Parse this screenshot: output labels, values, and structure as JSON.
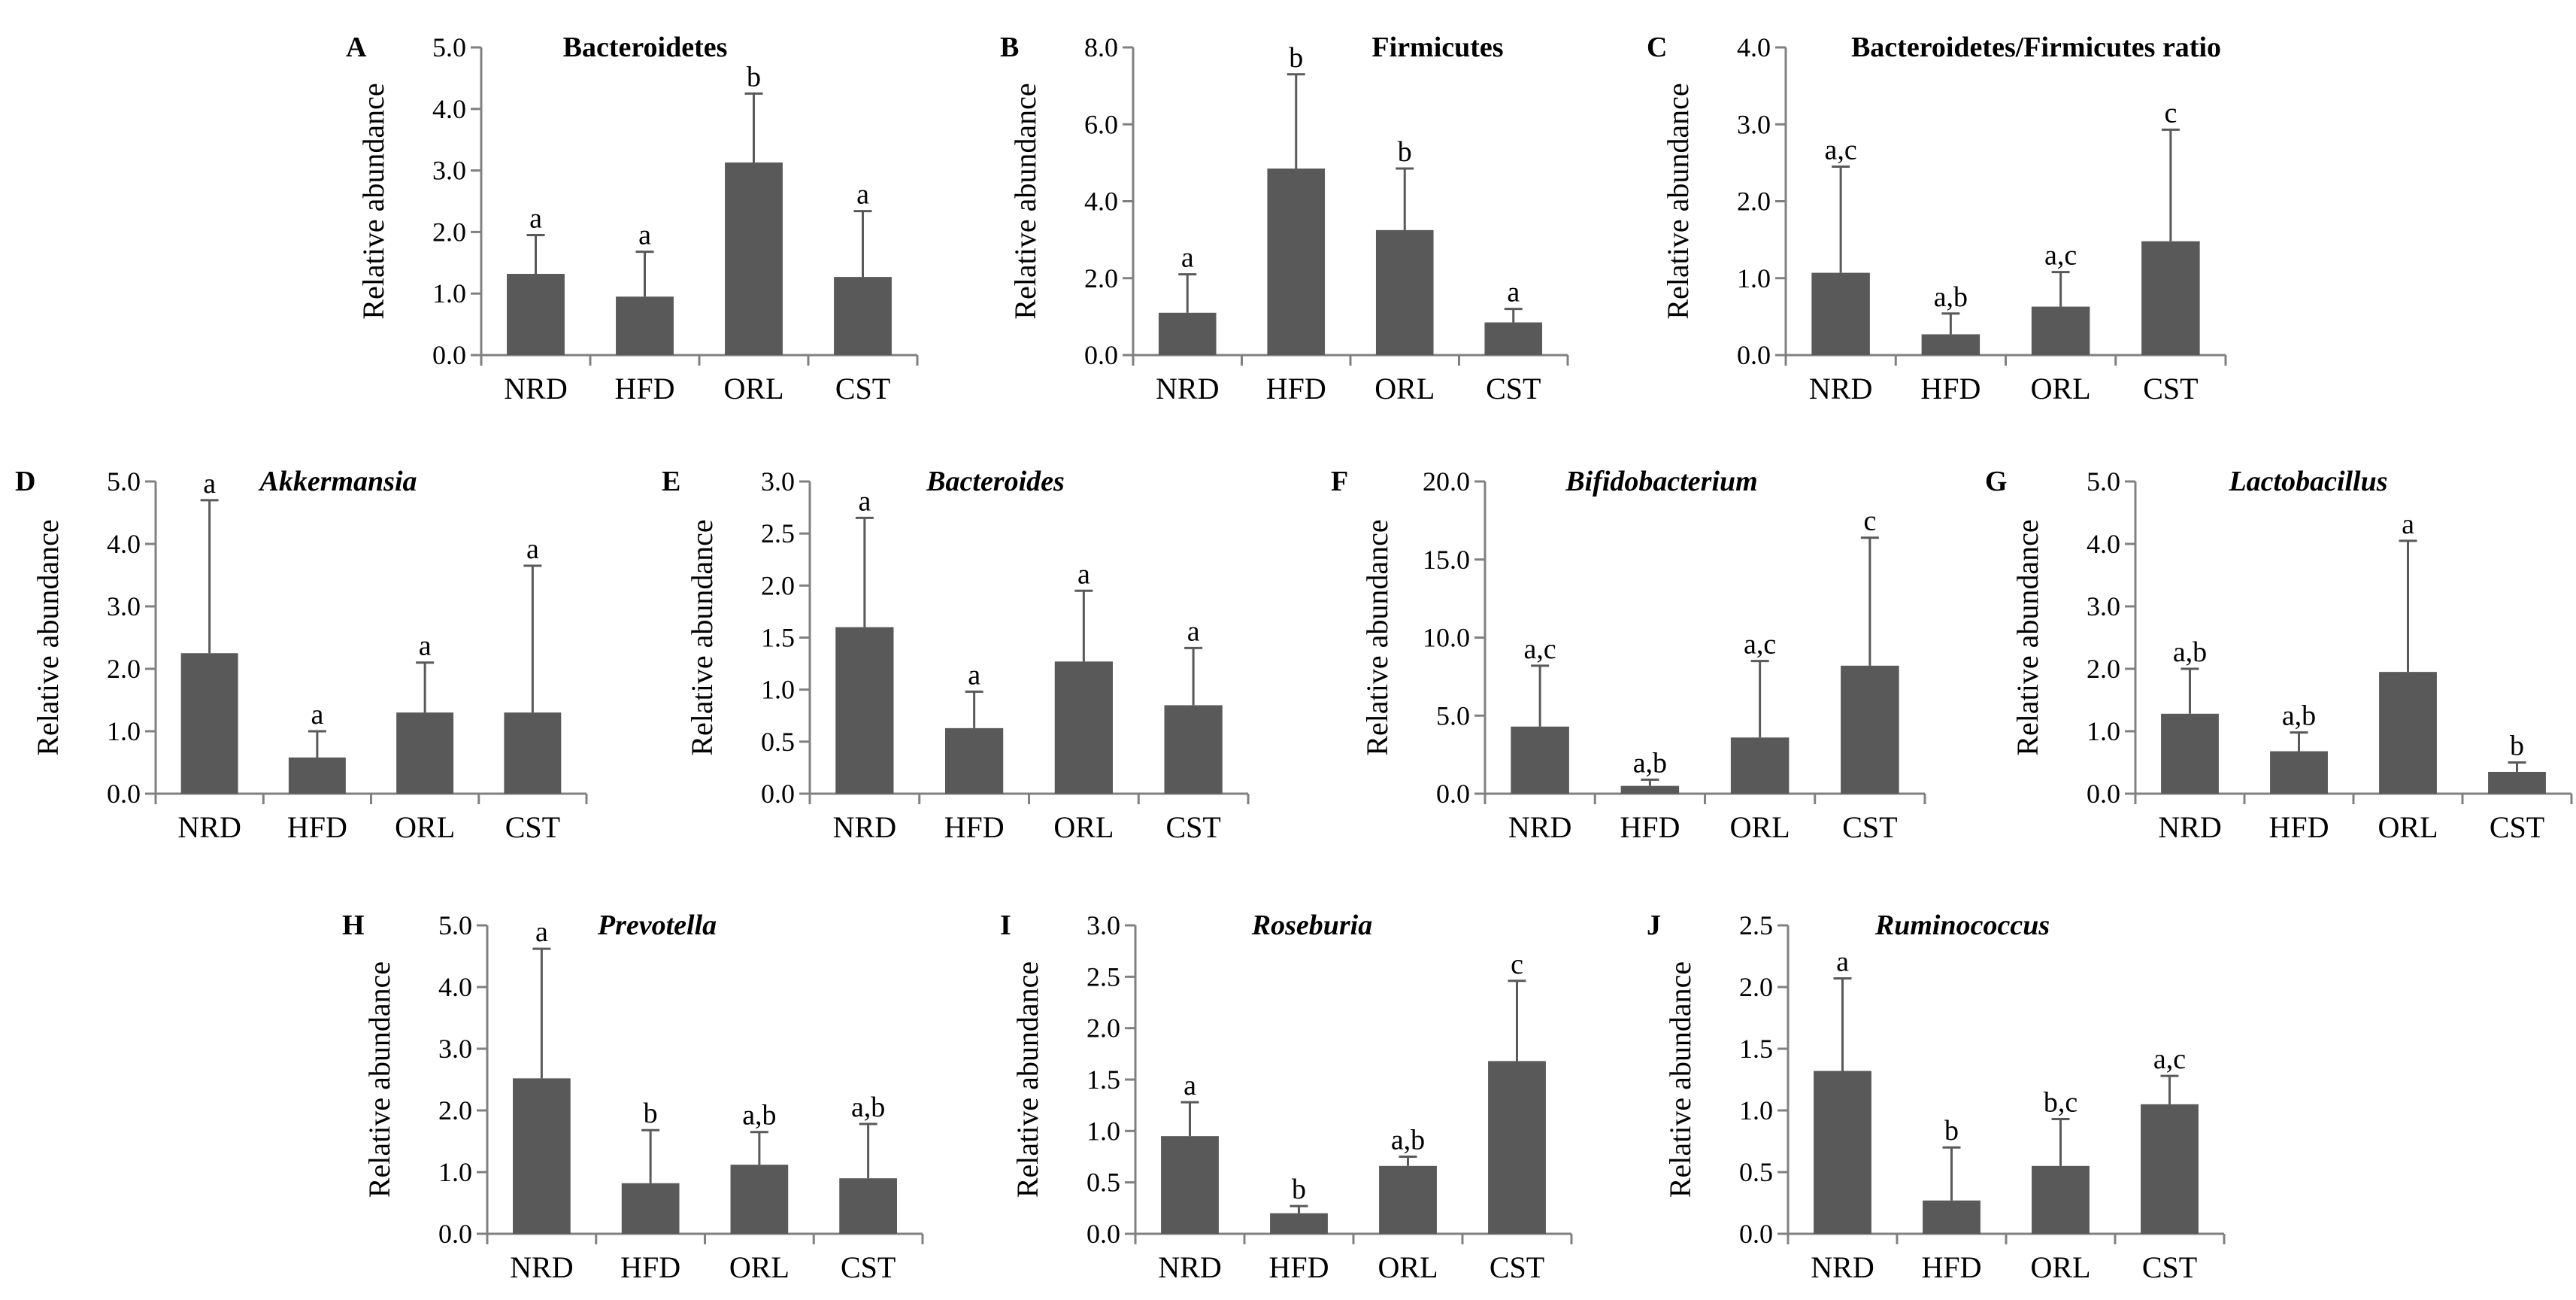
{
  "chart_data": [
    {
      "type": "bar",
      "letter": "A",
      "title": "Bacteroidetes",
      "italic": false,
      "ylabel": "Relative abundance",
      "ylim": [
        0,
        5
      ],
      "yticks": [
        "0.0",
        "1.0",
        "2.0",
        "3.0",
        "4.0",
        "5.0"
      ],
      "categories": [
        "NRD",
        "HFD",
        "ORL",
        "CST"
      ],
      "values": [
        1.32,
        0.95,
        3.13,
        1.27
      ],
      "errors": [
        0.63,
        0.73,
        1.12,
        1.07
      ],
      "labels": [
        "a",
        "a",
        "b",
        "a"
      ]
    },
    {
      "type": "bar",
      "letter": "B",
      "title": "Firmicutes",
      "italic": false,
      "ylabel": "Relative abundance",
      "ylim": [
        0,
        8
      ],
      "yticks": [
        "0.0",
        "2.0",
        "4.0",
        "6.0",
        "8.0"
      ],
      "categories": [
        "NRD",
        "HFD",
        "ORL",
        "CST"
      ],
      "values": [
        1.1,
        4.85,
        3.25,
        0.85
      ],
      "errors": [
        1.0,
        2.45,
        1.6,
        0.35
      ],
      "labels": [
        "a",
        "b",
        "b",
        "a"
      ]
    },
    {
      "type": "bar",
      "letter": "C",
      "title": "Bacteroidetes/Firmicutes ratio",
      "italic": false,
      "ylabel": "Relative abundance",
      "ylim": [
        0,
        4
      ],
      "yticks": [
        "0.0",
        "1.0",
        "2.0",
        "3.0",
        "4.0"
      ],
      "categories": [
        "NRD",
        "HFD",
        "ORL",
        "CST"
      ],
      "values": [
        1.07,
        0.27,
        0.63,
        1.48
      ],
      "errors": [
        1.38,
        0.27,
        0.45,
        1.45
      ],
      "labels": [
        "a,c",
        "a,b",
        "a,c",
        "c"
      ]
    },
    {
      "type": "bar",
      "letter": "D",
      "title": "Akkermansia",
      "italic": true,
      "ylabel": "Relative abundance",
      "ylim": [
        0,
        5
      ],
      "yticks": [
        "0.0",
        "1.0",
        "2.0",
        "3.0",
        "4.0",
        "5.0"
      ],
      "categories": [
        "NRD",
        "HFD",
        "ORL",
        "CST"
      ],
      "values": [
        2.25,
        0.58,
        1.3,
        1.3
      ],
      "errors": [
        2.45,
        0.42,
        0.8,
        2.35
      ],
      "labels": [
        "a",
        "a",
        "a",
        "a"
      ]
    },
    {
      "type": "bar",
      "letter": "E",
      "title": "Bacteroides",
      "italic": true,
      "ylabel": "Relative abundance",
      "ylim": [
        0,
        3
      ],
      "yticks": [
        "0.0",
        "0.5",
        "1.0",
        "1.5",
        "2.0",
        "2.5",
        "3.0"
      ],
      "categories": [
        "NRD",
        "HFD",
        "ORL",
        "CST"
      ],
      "values": [
        1.6,
        0.63,
        1.27,
        0.85
      ],
      "errors": [
        1.05,
        0.35,
        0.68,
        0.55
      ],
      "labels": [
        "a",
        "a",
        "a",
        "a"
      ]
    },
    {
      "type": "bar",
      "letter": "F",
      "title": "Bifidobacterium",
      "italic": true,
      "ylabel": "Relative abundance",
      "ylim": [
        0,
        20
      ],
      "yticks": [
        "0.0",
        "5.0",
        "10.0",
        "15.0",
        "20.0"
      ],
      "categories": [
        "NRD",
        "HFD",
        "ORL",
        "CST"
      ],
      "values": [
        4.3,
        0.5,
        3.6,
        8.2
      ],
      "errors": [
        3.9,
        0.4,
        4.9,
        8.2
      ],
      "labels": [
        "a,c",
        "a,b",
        "a,c",
        "c"
      ]
    },
    {
      "type": "bar",
      "letter": "G",
      "title": "Lactobacillus",
      "italic": true,
      "ylabel": "Relative abundance",
      "ylim": [
        0,
        5
      ],
      "yticks": [
        "0.0",
        "1.0",
        "2.0",
        "3.0",
        "4.0",
        "5.0"
      ],
      "categories": [
        "NRD",
        "HFD",
        "ORL",
        "CST"
      ],
      "values": [
        1.28,
        0.68,
        1.95,
        0.35
      ],
      "errors": [
        0.72,
        0.3,
        2.1,
        0.15
      ],
      "labels": [
        "a,b",
        "a,b",
        "a",
        "b"
      ]
    },
    {
      "type": "bar",
      "letter": "H",
      "title": "Prevotella",
      "italic": true,
      "ylabel": "Relative abundance",
      "ylim": [
        0,
        5
      ],
      "yticks": [
        "0.0",
        "1.0",
        "2.0",
        "3.0",
        "4.0",
        "5.0"
      ],
      "categories": [
        "NRD",
        "HFD",
        "ORL",
        "CST"
      ],
      "values": [
        2.52,
        0.82,
        1.12,
        0.9
      ],
      "errors": [
        2.1,
        0.86,
        0.53,
        0.88
      ],
      "labels": [
        "a",
        "b",
        "a,b",
        "a,b"
      ]
    },
    {
      "type": "bar",
      "letter": "I",
      "title": "Roseburia",
      "italic": true,
      "ylabel": "Relative abundance",
      "ylim": [
        0,
        3
      ],
      "yticks": [
        "0.0",
        "0.5",
        "1.0",
        "1.5",
        "2.0",
        "2.5",
        "3.0"
      ],
      "categories": [
        "NRD",
        "HFD",
        "ORL",
        "CST"
      ],
      "values": [
        0.95,
        0.2,
        0.66,
        1.68
      ],
      "errors": [
        0.33,
        0.07,
        0.09,
        0.78
      ],
      "labels": [
        "a",
        "b",
        "a,b",
        "c"
      ]
    },
    {
      "type": "bar",
      "letter": "J",
      "title": "Ruminococcus",
      "italic": true,
      "ylabel": "Relative abundance",
      "ylim": [
        0,
        2.5
      ],
      "yticks": [
        "0.0",
        "0.5",
        "1.0",
        "1.5",
        "2.0",
        "2.5"
      ],
      "categories": [
        "NRD",
        "HFD",
        "ORL",
        "CST"
      ],
      "values": [
        1.32,
        0.27,
        0.55,
        1.05
      ],
      "errors": [
        0.75,
        0.43,
        0.38,
        0.23
      ],
      "labels": [
        "a",
        "b",
        "b,c",
        "a,c"
      ]
    }
  ],
  "colors": {
    "bar": "#595959",
    "axis": "#808080",
    "text": "#000000"
  }
}
